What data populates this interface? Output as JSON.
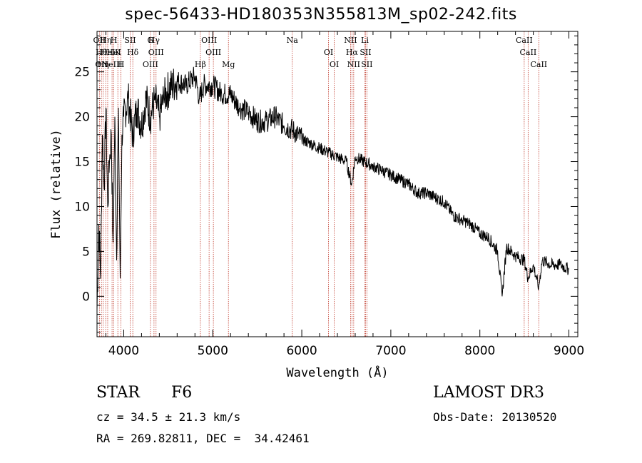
{
  "header": {
    "title": "spec-56433-HD180353N355813M_sp02-242.fits"
  },
  "info": {
    "class_label": "STAR",
    "subclass": "F6",
    "survey": "LAMOST DR3",
    "cz": "cz = 34.5 ± 21.3 km/s",
    "obs_date": "Obs-Date: 20130520",
    "coords": "RA = 269.82811, DEC =  34.42461"
  },
  "chart_data": {
    "type": "line",
    "title": "spec-56433-HD180353N355813M_sp02-242.fits",
    "xlabel": "Wavelength (Å)",
    "ylabel": "Flux (relative)",
    "xlim": [
      3700,
      9100
    ],
    "ylim": [
      -4.5,
      29.5
    ],
    "xticks": [
      4000,
      5000,
      6000,
      7000,
      8000,
      9000
    ],
    "yticks": [
      0,
      5,
      10,
      15,
      20,
      25
    ],
    "line_color": "#000000",
    "marker_color": "#c0392b",
    "series": [
      {
        "name": "flux",
        "x": [
          3700,
          3720,
          3740,
          3760,
          3780,
          3800,
          3820,
          3840,
          3860,
          3880,
          3900,
          3920,
          3940,
          3960,
          3980,
          4000,
          4050,
          4100,
          4150,
          4200,
          4250,
          4300,
          4350,
          4400,
          4450,
          4500,
          4600,
          4700,
          4800,
          4850,
          4900,
          5000,
          5100,
          5200,
          5300,
          5400,
          5500,
          5600,
          5700,
          5800,
          5900,
          6000,
          6100,
          6200,
          6300,
          6400,
          6500,
          6560,
          6600,
          6700,
          6800,
          6900,
          7000,
          7100,
          7200,
          7300,
          7400,
          7500,
          7600,
          7700,
          7800,
          7900,
          8000,
          8100,
          8200,
          8250,
          8300,
          8400,
          8500,
          8540,
          8600,
          8660,
          8700,
          8800,
          8900,
          9000
        ],
        "y": [
          -1.5,
          8,
          2,
          18,
          12,
          21,
          10,
          15,
          18,
          6,
          20,
          4,
          21,
          2,
          18,
          20,
          22,
          18,
          21,
          19,
          22,
          20,
          22,
          20,
          22,
          23,
          24,
          23.5,
          24.5,
          22,
          23.5,
          23.5,
          22.5,
          22.5,
          21,
          20.5,
          19.5,
          19.5,
          20,
          19,
          18.5,
          17.5,
          17,
          16.5,
          16,
          15.5,
          15,
          12.5,
          15.5,
          15,
          14.5,
          14,
          13.5,
          13,
          12.5,
          11.5,
          11.5,
          11,
          10.5,
          9,
          8.5,
          8,
          7,
          6.5,
          5,
          0,
          5.5,
          4.5,
          4,
          2,
          3.5,
          1,
          4,
          3.5,
          3.5,
          3
        ]
      }
    ],
    "line_markers": [
      {
        "x": 3727,
        "labels": [
          "OII"
        ]
      },
      {
        "x": 3750,
        "labels": [
          "Hθ",
          "OII"
        ]
      },
      {
        "x": 3770,
        "labels": [
          "Hη"
        ]
      },
      {
        "x": 3798,
        "labels": [
          "Hη"
        ]
      },
      {
        "x": 3820,
        "labels": [
          "HeI"
        ]
      },
      {
        "x": 3869,
        "labels": [
          "NeIII"
        ]
      },
      {
        "x": 3889,
        "labels": [
          "H",
          "HeI"
        ]
      },
      {
        "x": 3934,
        "labels": [
          "K"
        ]
      },
      {
        "x": 3969,
        "labels": [
          "H"
        ]
      },
      {
        "x": 4072,
        "labels": [
          "SII"
        ]
      },
      {
        "x": 4102,
        "labels": [
          "Hδ"
        ]
      },
      {
        "x": 4300,
        "labels": [
          "OIII",
          "G"
        ]
      },
      {
        "x": 4340,
        "labels": [
          "Hγ"
        ]
      },
      {
        "x": 4363,
        "labels": [
          "OIII"
        ]
      },
      {
        "x": 4861,
        "labels": [
          "Hβ"
        ]
      },
      {
        "x": 4959,
        "labels": [
          "OIII"
        ]
      },
      {
        "x": 5007,
        "labels": [
          "OIII"
        ]
      },
      {
        "x": 5176,
        "labels": [
          "Mg"
        ]
      },
      {
        "x": 5893,
        "labels": [
          "Na"
        ]
      },
      {
        "x": 6300,
        "labels": [
          "OI"
        ]
      },
      {
        "x": 6364,
        "labels": [
          "OI"
        ]
      },
      {
        "x": 6548,
        "labels": [
          "NII"
        ]
      },
      {
        "x": 6563,
        "labels": [
          "Hα"
        ]
      },
      {
        "x": 6583,
        "labels": [
          "NII"
        ]
      },
      {
        "x": 6708,
        "labels": [
          "Li"
        ]
      },
      {
        "x": 6716,
        "labels": [
          "SII"
        ]
      },
      {
        "x": 6731,
        "labels": [
          "SII"
        ]
      },
      {
        "x": 8498,
        "labels": [
          "CaII"
        ]
      },
      {
        "x": 8542,
        "labels": [
          "CaII"
        ]
      },
      {
        "x": 8662,
        "labels": [
          "CaII"
        ]
      }
    ]
  }
}
